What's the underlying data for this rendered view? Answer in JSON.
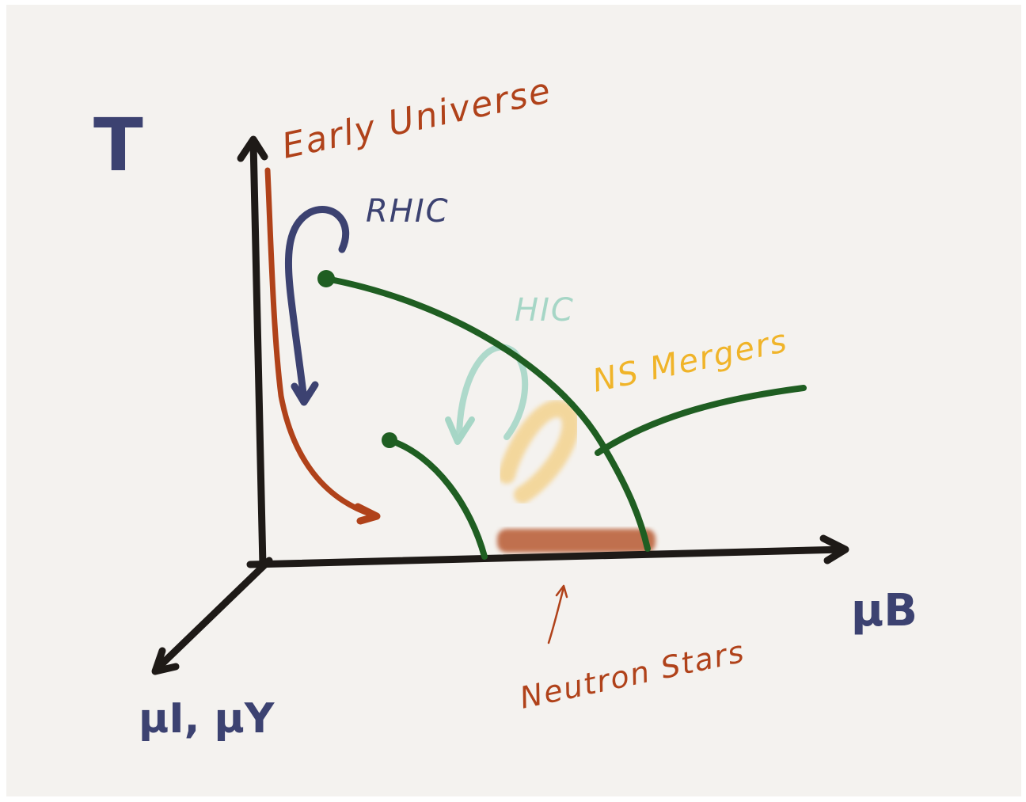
{
  "axes": {
    "temperature": "T",
    "baryon": "μB",
    "isospin": "μI, μY"
  },
  "labels": {
    "early_universe": "Early Universe",
    "rhic": "RHIC",
    "hic": "HIC",
    "ns_mergers": "NS Mergers",
    "neutron_stars": "Neutron Stars"
  }
}
